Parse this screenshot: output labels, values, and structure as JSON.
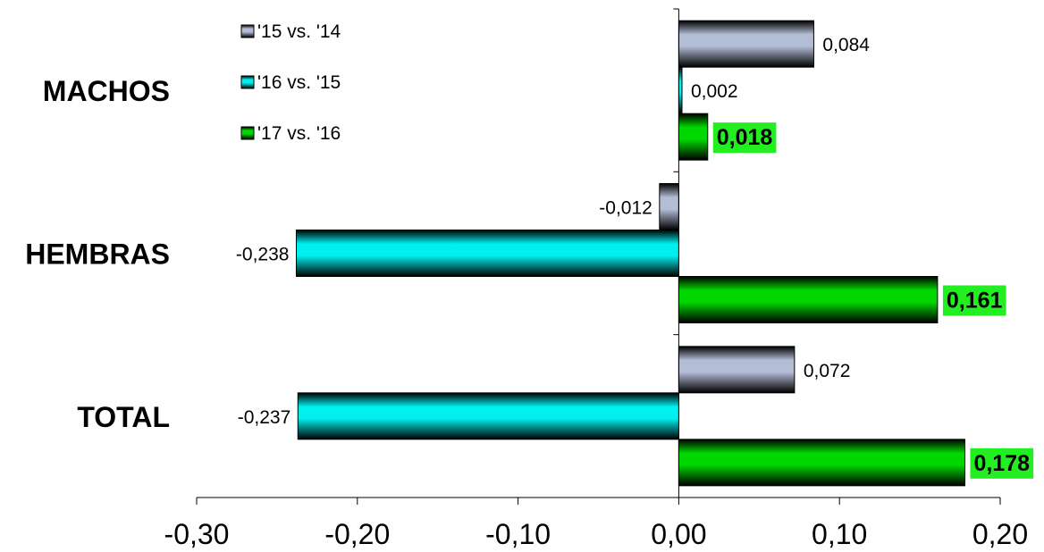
{
  "chart_data": {
    "type": "bar",
    "orientation": "horizontal",
    "title": "",
    "xlabel": "",
    "ylabel": "",
    "categories": [
      "MACHOS",
      "HEMBRAS",
      "TOTAL"
    ],
    "xlim": [
      -0.3,
      0.2
    ],
    "x_ticks": [
      -0.3,
      -0.2,
      -0.1,
      0.0,
      0.1,
      0.2
    ],
    "x_tick_labels": [
      "-0,30",
      "-0,20",
      "-0,10",
      "0,00",
      "0,10",
      "0,20"
    ],
    "grid": false,
    "legend_position": "top-left",
    "series": [
      {
        "name": "'15 vs. '14",
        "color": "#b4bdd6",
        "values": [
          0.084,
          -0.012,
          0.072
        ],
        "value_labels": [
          "0,084",
          "-0,012",
          "0,072"
        ],
        "label_highlight": false
      },
      {
        "name": "'16 vs. '15",
        "color": "#00f0f0",
        "values": [
          0.002,
          -0.238,
          -0.237
        ],
        "value_labels": [
          "0,002",
          "-0,238",
          "-0,237"
        ],
        "label_highlight": false
      },
      {
        "name": "'17 vs. '16",
        "color": "#00d800",
        "values": [
          0.018,
          0.161,
          0.178
        ],
        "value_labels": [
          "0,018",
          "0,161",
          "0,178"
        ],
        "label_highlight": true,
        "label_highlight_color": "#22ee22"
      }
    ]
  }
}
